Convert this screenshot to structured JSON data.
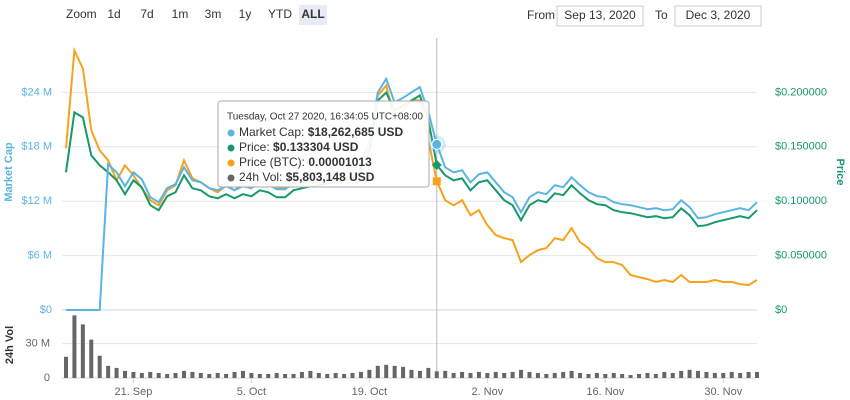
{
  "toolbar": {
    "zoom_label": "Zoom",
    "buttons": [
      "1d",
      "7d",
      "1m",
      "3m",
      "1y",
      "YTD",
      "ALL"
    ],
    "selected": "ALL"
  },
  "range": {
    "from_label": "From",
    "from": "Sep 13, 2020",
    "to_label": "To",
    "to": "Dec 3, 2020"
  },
  "tooltip": {
    "title": "Tuesday, Oct 27 2020, 16:34:05 UTC+08:00",
    "rows": [
      {
        "label": "Market Cap:",
        "value": "$18,262,685 USD"
      },
      {
        "label": "Price:",
        "value": "$0.133304 USD"
      },
      {
        "label": "Price (BTC):",
        "value": "0.00001013"
      },
      {
        "label": "24h Vol:",
        "value": "$5,803,148 USD"
      }
    ]
  },
  "chart_data": {
    "type": "line",
    "ylabel": "Market Cap",
    "y2label": "Price",
    "vollabel": "24h Vol",
    "x": [
      "2020-09-13",
      "2020-09-14",
      "2020-09-15",
      "2020-09-16",
      "2020-09-17",
      "2020-09-18",
      "2020-09-19",
      "2020-09-20",
      "2020-09-21",
      "2020-09-22",
      "2020-09-23",
      "2020-09-24",
      "2020-09-25",
      "2020-09-26",
      "2020-09-27",
      "2020-09-28",
      "2020-09-29",
      "2020-09-30",
      "2020-10-01",
      "2020-10-02",
      "2020-10-03",
      "2020-10-04",
      "2020-10-05",
      "2020-10-06",
      "2020-10-07",
      "2020-10-08",
      "2020-10-09",
      "2020-10-10",
      "2020-10-11",
      "2020-10-12",
      "2020-10-13",
      "2020-10-14",
      "2020-10-15",
      "2020-10-16",
      "2020-10-17",
      "2020-10-18",
      "2020-10-19",
      "2020-10-20",
      "2020-10-21",
      "2020-10-22",
      "2020-10-23",
      "2020-10-24",
      "2020-10-25",
      "2020-10-26",
      "2020-10-27",
      "2020-10-28",
      "2020-10-29",
      "2020-10-30",
      "2020-10-31",
      "2020-11-01",
      "2020-11-02",
      "2020-11-03",
      "2020-11-04",
      "2020-11-05",
      "2020-11-06",
      "2020-11-07",
      "2020-11-08",
      "2020-11-09",
      "2020-11-10",
      "2020-11-11",
      "2020-11-12",
      "2020-11-13",
      "2020-11-14",
      "2020-11-15",
      "2020-11-16",
      "2020-11-17",
      "2020-11-18",
      "2020-11-19",
      "2020-11-20",
      "2020-11-21",
      "2020-11-22",
      "2020-11-23",
      "2020-11-24",
      "2020-11-25",
      "2020-11-26",
      "2020-11-27",
      "2020-11-28",
      "2020-11-29",
      "2020-11-30",
      "2020-12-01",
      "2020-12-02",
      "2020-12-03",
      "2020-12-04"
    ],
    "xlim": [
      "2020-09-13",
      "2020-12-04"
    ],
    "xticks": [
      {
        "value": "2020-09-21",
        "label": "21. Sep"
      },
      {
        "value": "2020-10-05",
        "label": "5. Oct"
      },
      {
        "value": "2020-10-19",
        "label": "19. Oct"
      },
      {
        "value": "2020-11-02",
        "label": "2. Nov"
      },
      {
        "value": "2020-11-16",
        "label": "16. Nov"
      },
      {
        "value": "2020-11-30",
        "label": "30. Nov"
      }
    ],
    "ylim": [
      0,
      30000000
    ],
    "yticks": [
      {
        "value": 0,
        "label": "$0"
      },
      {
        "value": 6000000,
        "label": "$6 M"
      },
      {
        "value": 12000000,
        "label": "$12 M"
      },
      {
        "value": 18000000,
        "label": "$18 M"
      },
      {
        "value": 24000000,
        "label": "$24 M"
      }
    ],
    "y2lim": [
      0,
      0.25
    ],
    "y2ticks": [
      {
        "value": 0,
        "label": "$0"
      },
      {
        "value": 0.05,
        "label": "$0.050000"
      },
      {
        "value": 0.1,
        "label": "$0.100000"
      },
      {
        "value": 0.15,
        "label": "$0.150000"
      },
      {
        "value": 0.2,
        "label": "$0.200000"
      }
    ],
    "y3lim": [
      0,
      2.14e-05
    ],
    "vollim": [
      0,
      55000000
    ],
    "volticks": [
      0,
      {
        "value": 30000000,
        "label": "30 M"
      }
    ],
    "grid": true,
    "series": [
      {
        "color": "#5ab4e5",
        "axis": "y",
        "values": [
          0,
          0,
          0,
          0,
          0,
          16070000,
          15190000,
          13650000,
          15190000,
          14420000,
          12440000,
          11890000,
          13430000,
          13870000,
          15740000,
          14310000,
          14090000,
          13430000,
          13210000,
          13650000,
          13210000,
          13650000,
          13430000,
          14090000,
          13870000,
          13320000,
          13320000,
          14090000,
          14310000,
          14530000,
          14640000,
          14860000,
          14970000,
          15190000,
          15410000,
          16290000,
          18500000,
          24000000,
          25500000,
          22900000,
          23400000,
          24000000,
          24600000,
          21800000,
          18262685,
          15740000,
          15190000,
          15410000,
          14090000,
          14970000,
          15190000,
          14090000,
          12990000,
          12440000,
          10790000,
          12440000,
          12990000,
          12770000,
          13760000,
          13540000,
          14640000,
          13760000,
          12990000,
          12550000,
          12440000,
          11890000,
          11670000,
          11560000,
          11340000,
          11120000,
          11230000,
          11010000,
          11120000,
          12110000,
          11340000,
          10130000,
          10240000,
          10570000,
          10790000,
          11010000,
          11230000,
          11010000,
          11890000
        ]
      },
      {
        "color": "#17996b",
        "axis": "y2",
        "values": [
          0.1266,
          0.1816,
          0.177,
          0.1421,
          0.133,
          0.1266,
          0.1192,
          0.1064,
          0.1192,
          0.1128,
          0.0963,
          0.0917,
          0.1045,
          0.1082,
          0.1238,
          0.1119,
          0.11,
          0.1045,
          0.1027,
          0.1064,
          0.1027,
          0.1064,
          0.1045,
          0.11,
          0.1082,
          0.1036,
          0.1036,
          0.11,
          0.1119,
          0.1137,
          0.1146,
          0.1165,
          0.1174,
          0.1192,
          0.121,
          0.1284,
          0.1467,
          0.1926,
          0.1999,
          0.1834,
          0.188,
          0.1926,
          0.1972,
          0.1742,
          0.133304,
          0.1238,
          0.1192,
          0.121,
          0.11,
          0.1174,
          0.1192,
          0.11,
          0.1009,
          0.0963,
          0.0825,
          0.0963,
          0.1009,
          0.099,
          0.1073,
          0.1055,
          0.1146,
          0.1073,
          0.1009,
          0.0972,
          0.0963,
          0.0917,
          0.0899,
          0.089,
          0.0871,
          0.0853,
          0.0862,
          0.0844,
          0.0853,
          0.0935,
          0.0871,
          0.077,
          0.0779,
          0.0807,
          0.0825,
          0.0844,
          0.0862,
          0.0844,
          0.0917
        ]
      },
      {
        "color": "#f7a21b",
        "axis": "y3",
        "values": [
          1.272e-05,
          2.041e-05,
          1.9e-05,
          1.413e-05,
          1.256e-05,
          1.178e-05,
          1.021e-05,
          1.138e-05,
          1.06e-05,
          9.58e-06,
          8.64e-06,
          8.24e-06,
          9.42e-06,
          9.81e-06,
          1.178e-05,
          1.036e-05,
          1.005e-05,
          9.58e-06,
          9.26e-06,
          9.81e-06,
          9.42e-06,
          9.97e-06,
          9.73e-06,
          1.021e-05,
          9.97e-06,
          9.58e-06,
          9.58e-06,
          9.81e-06,
          9.97e-06,
          9.97e-06,
          1.005e-05,
          1.021e-05,
          1.021e-05,
          1.036e-05,
          1.052e-05,
          1.099e-05,
          1.335e-05,
          1.688e-05,
          1.766e-05,
          1.492e-05,
          1.57e-05,
          1.649e-05,
          1.649e-05,
          1.335e-05,
          1.013e-05,
          8.64e-06,
          8.24e-06,
          8.64e-06,
          7.46e-06,
          7.85e-06,
          6.67e-06,
          5.89e-06,
          5.65e-06,
          5.5e-06,
          3.77e-06,
          4.32e-06,
          4.71e-06,
          4.87e-06,
          5.65e-06,
          5.5e-06,
          6.44e-06,
          5.34e-06,
          4.87e-06,
          4.08e-06,
          3.77e-06,
          3.77e-06,
          3.53e-06,
          2.75e-06,
          2.59e-06,
          2.43e-06,
          2.2e-06,
          2.36e-06,
          2.2e-06,
          2.75e-06,
          2.2e-06,
          2.2e-06,
          2.2e-06,
          2.36e-06,
          2.2e-06,
          2.2e-06,
          2.04e-06,
          1.96e-06,
          2.36e-06
        ]
      },
      {
        "color": "#666666",
        "axis": "vol",
        "type": "bar",
        "values": [
          18500000,
          54700000,
          46800000,
          33500000,
          19400000,
          10600000,
          8800000,
          6200000,
          5300000,
          4400000,
          5300000,
          4400000,
          3500000,
          4400000,
          6200000,
          5300000,
          4400000,
          3500000,
          4400000,
          3500000,
          5300000,
          6200000,
          4400000,
          3500000,
          3500000,
          4400000,
          3500000,
          3500000,
          5300000,
          6200000,
          4400000,
          3500000,
          4400000,
          3500000,
          4400000,
          5300000,
          7100000,
          10600000,
          11500000,
          10600000,
          9700000,
          7100000,
          6200000,
          8800000,
          5803148,
          6200000,
          4400000,
          5300000,
          4400000,
          5300000,
          4400000,
          5300000,
          4400000,
          5300000,
          7100000,
          5300000,
          4400000,
          3500000,
          4400000,
          5300000,
          6200000,
          4400000,
          3500000,
          4400000,
          3500000,
          4400000,
          3500000,
          2600000,
          3500000,
          4400000,
          3500000,
          5300000,
          4400000,
          6200000,
          7100000,
          6200000,
          5300000,
          4400000,
          4400000,
          5300000,
          4400000,
          5300000,
          5300000
        ]
      }
    ]
  }
}
